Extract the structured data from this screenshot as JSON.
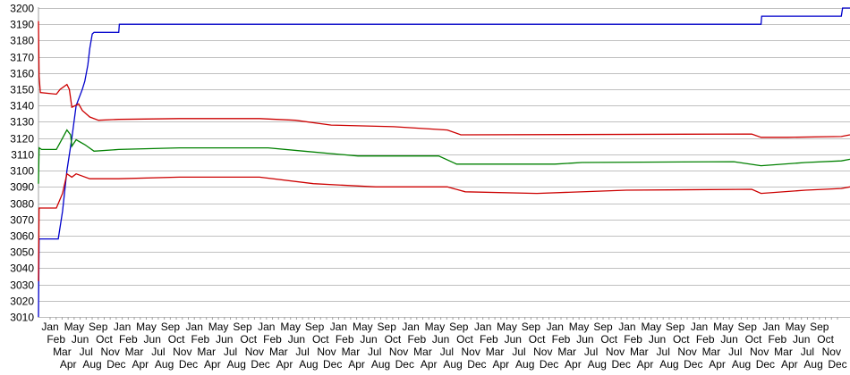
{
  "chart_data": {
    "type": "line",
    "title": "",
    "xlabel": "",
    "ylabel": "",
    "ylim": [
      3010,
      3200
    ],
    "xlim": [
      0,
      131.4
    ],
    "y_ticks": [
      3010,
      3020,
      3030,
      3040,
      3050,
      3060,
      3070,
      3080,
      3090,
      3100,
      3110,
      3120,
      3130,
      3140,
      3150,
      3160,
      3170,
      3180,
      3190,
      3200
    ],
    "x_tick_labels": [
      "Jan",
      "Feb",
      "Mar",
      "Apr",
      "May",
      "Jun",
      "Jul",
      "Aug",
      "Sep",
      "Oct",
      "Nov",
      "Dec",
      "Jan",
      "Feb",
      "Mar",
      "Apr",
      "May",
      "Jun",
      "Jul",
      "Aug",
      "Sep",
      "Oct",
      "Nov",
      "Dec",
      "Jan",
      "Feb",
      "Mar",
      "Apr",
      "May",
      "Jun",
      "Jul",
      "Aug",
      "Sep",
      "Oct",
      "Nov",
      "Dec",
      "Jan",
      "Feb",
      "Mar",
      "Apr",
      "May",
      "Jun",
      "Jul",
      "Aug",
      "Sep",
      "Oct",
      "Nov",
      "Dec",
      "Jan",
      "Feb",
      "Mar",
      "Apr",
      "May",
      "Jun",
      "Jul",
      "Aug",
      "Sep",
      "Oct",
      "Nov",
      "Dec",
      "Jan",
      "Feb",
      "Mar",
      "Apr",
      "May",
      "Jun",
      "Jul",
      "Aug",
      "Sep",
      "Oct",
      "Nov",
      "Dec",
      "Jan",
      "Feb",
      "Mar",
      "Apr",
      "May",
      "Jun",
      "Jul",
      "Aug",
      "Sep",
      "Oct",
      "Nov",
      "Dec",
      "Jan",
      "Feb",
      "Mar",
      "Apr",
      "May",
      "Jun",
      "Jul",
      "Aug",
      "Sep",
      "Oct",
      "Nov",
      "Dec",
      "Jan",
      "Feb",
      "Mar",
      "Apr",
      "May",
      "Jun",
      "Jul",
      "Aug",
      "Sep",
      "Oct",
      "Nov",
      "Dec",
      "Jan",
      "Feb",
      "Mar",
      "Apr",
      "May",
      "Jun",
      "Jul",
      "Aug",
      "Sep",
      "Oct",
      "Nov",
      "Dec",
      "Jan",
      "Feb",
      "Mar",
      "Apr",
      "May",
      "Jun",
      "Jul",
      "Aug",
      "Sep",
      "Oct",
      "Nov",
      "Dec"
    ],
    "grid": "horizontal",
    "legend": "none",
    "series": [
      {
        "color": "#0000cc",
        "points": [
          [
            0,
            3010
          ],
          [
            0.1,
            3058
          ],
          [
            3.2,
            3058
          ],
          [
            3.9,
            3075
          ],
          [
            4.6,
            3100
          ],
          [
            5.4,
            3120
          ],
          [
            6.1,
            3140
          ],
          [
            7.1,
            3150
          ],
          [
            7.5,
            3155
          ],
          [
            8.0,
            3165
          ],
          [
            8.3,
            3175
          ],
          [
            8.7,
            3184
          ],
          [
            9.0,
            3185
          ],
          [
            13.0,
            3185
          ],
          [
            13.1,
            3190
          ],
          [
            117.0,
            3190
          ],
          [
            117.1,
            3195
          ],
          [
            130.0,
            3195
          ],
          [
            130.2,
            3200
          ],
          [
            131.4,
            3200
          ]
        ]
      },
      {
        "color": "#cc0000",
        "points": [
          [
            0,
            3192
          ],
          [
            0.1,
            3158
          ],
          [
            0.3,
            3148
          ],
          [
            2.9,
            3147
          ],
          [
            3.5,
            3150
          ],
          [
            4.6,
            3153
          ],
          [
            5.0,
            3150
          ],
          [
            5.4,
            3139
          ],
          [
            6.5,
            3141
          ],
          [
            7.1,
            3137
          ],
          [
            8.3,
            3133
          ],
          [
            9.7,
            3131
          ],
          [
            13.0,
            3131.5
          ],
          [
            22.8,
            3132
          ],
          [
            35.8,
            3132
          ],
          [
            41.6,
            3131
          ],
          [
            47.4,
            3128
          ],
          [
            57.5,
            3127
          ],
          [
            66.2,
            3125
          ],
          [
            68.4,
            3122
          ],
          [
            115.5,
            3122.5
          ],
          [
            117.0,
            3120.5
          ],
          [
            121.3,
            3120.5
          ],
          [
            130.0,
            3121
          ],
          [
            131.4,
            3122
          ]
        ]
      },
      {
        "color": "#008000",
        "points": [
          [
            0,
            3092
          ],
          [
            0.1,
            3114
          ],
          [
            0.5,
            3113
          ],
          [
            2.9,
            3113
          ],
          [
            3.9,
            3120
          ],
          [
            4.6,
            3125
          ],
          [
            5.2,
            3122
          ],
          [
            5.4,
            3115
          ],
          [
            6.1,
            3119
          ],
          [
            7.5,
            3116
          ],
          [
            9.0,
            3112
          ],
          [
            13.0,
            3113
          ],
          [
            22.8,
            3114
          ],
          [
            37.2,
            3114
          ],
          [
            43.0,
            3112
          ],
          [
            51.7,
            3109
          ],
          [
            64.8,
            3109
          ],
          [
            67.7,
            3104
          ],
          [
            83.6,
            3104
          ],
          [
            88.0,
            3105
          ],
          [
            112.6,
            3105.5
          ],
          [
            117.0,
            3103
          ],
          [
            124.2,
            3105
          ],
          [
            130.0,
            3106
          ],
          [
            131.4,
            3107
          ]
        ]
      },
      {
        "color": "#cc0000",
        "points": [
          [
            0,
            3032
          ],
          [
            0.1,
            3077
          ],
          [
            2.9,
            3077
          ],
          [
            3.9,
            3086
          ],
          [
            4.6,
            3098
          ],
          [
            5.4,
            3096
          ],
          [
            6.1,
            3098
          ],
          [
            8.3,
            3095
          ],
          [
            13.0,
            3095
          ],
          [
            22.8,
            3096
          ],
          [
            35.8,
            3096
          ],
          [
            44.5,
            3092
          ],
          [
            54.6,
            3090
          ],
          [
            66.2,
            3090
          ],
          [
            69.1,
            3087
          ],
          [
            80.7,
            3086
          ],
          [
            95.2,
            3088
          ],
          [
            115.5,
            3088.5
          ],
          [
            117.0,
            3086
          ],
          [
            124.2,
            3088
          ],
          [
            130.0,
            3089
          ],
          [
            131.4,
            3090
          ]
        ]
      }
    ]
  }
}
